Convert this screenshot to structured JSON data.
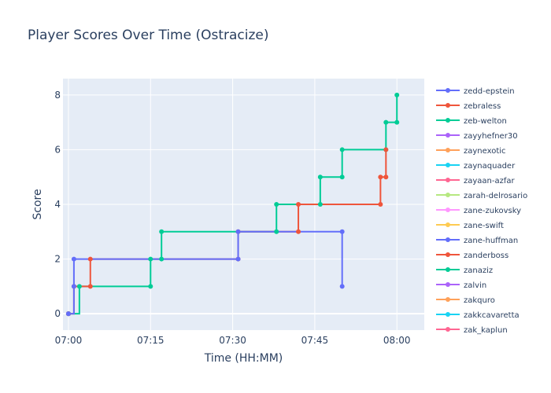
{
  "chart_data": {
    "type": "line",
    "line_shape": "step-after",
    "title": "Player Scores Over Time (Ostracize)",
    "xlabel": "Time (HH:MM)",
    "ylabel": "Score",
    "xlim": [
      "06:59",
      "08:05"
    ],
    "ylim": [
      -0.6,
      8.6
    ],
    "x_ticks": [
      "07:00",
      "07:15",
      "07:30",
      "07:45",
      "08:00"
    ],
    "y_ticks": [
      0,
      2,
      4,
      6,
      8
    ],
    "grid": true,
    "legend_position": "right",
    "series": [
      {
        "name": "zedd-epstein",
        "color": "#636efa",
        "points": [
          [
            "07:00",
            0
          ],
          [
            "07:01",
            1
          ],
          [
            "07:01",
            2
          ],
          [
            "07:31",
            2
          ],
          [
            "07:31",
            3
          ],
          [
            "07:50",
            3
          ],
          [
            "07:50",
            1
          ]
        ]
      },
      {
        "name": "zebraless",
        "color": "#ef553b",
        "points": [
          [
            "07:00",
            0
          ],
          [
            "07:01",
            1
          ],
          [
            "07:04",
            1
          ],
          [
            "07:04",
            2
          ],
          [
            "07:31",
            2
          ],
          [
            "07:31",
            3
          ],
          [
            "07:42",
            3
          ],
          [
            "07:42",
            4
          ],
          [
            "07:57",
            4
          ],
          [
            "07:57",
            5
          ],
          [
            "07:58",
            5
          ],
          [
            "07:58",
            6
          ]
        ]
      },
      {
        "name": "zeb-welton",
        "color": "#00cc96",
        "points": [
          [
            "07:00",
            0
          ],
          [
            "07:02",
            1
          ],
          [
            "07:15",
            1
          ],
          [
            "07:15",
            2
          ],
          [
            "07:17",
            2
          ],
          [
            "07:17",
            3
          ],
          [
            "07:38",
            3
          ],
          [
            "07:38",
            4
          ],
          [
            "07:46",
            4
          ],
          [
            "07:46",
            5
          ],
          [
            "07:50",
            5
          ],
          [
            "07:50",
            6
          ],
          [
            "07:58",
            6
          ],
          [
            "07:58",
            7
          ],
          [
            "08:00",
            7
          ],
          [
            "08:00",
            8
          ]
        ]
      },
      {
        "name": "zayyhefner30",
        "color": "#ab63fa",
        "points": [
          [
            "07:00",
            0
          ]
        ]
      },
      {
        "name": "zaynexotic",
        "color": "#ffa15a",
        "points": [
          [
            "07:00",
            0
          ]
        ]
      },
      {
        "name": "zaynaquader",
        "color": "#19d3f3",
        "points": [
          [
            "07:00",
            0
          ]
        ]
      },
      {
        "name": "zayaan-azfar",
        "color": "#ff6692",
        "points": [
          [
            "07:00",
            0
          ]
        ]
      },
      {
        "name": "zarah-delrosario",
        "color": "#b6e880",
        "points": [
          [
            "07:00",
            0
          ]
        ]
      },
      {
        "name": "zane-zukovsky",
        "color": "#ff97ff",
        "points": [
          [
            "07:00",
            0
          ]
        ]
      },
      {
        "name": "zane-swift",
        "color": "#fecb52",
        "points": [
          [
            "07:00",
            0
          ]
        ]
      },
      {
        "name": "zane-huffman",
        "color": "#636efa",
        "points": [
          [
            "07:00",
            0
          ]
        ]
      },
      {
        "name": "zanderboss",
        "color": "#ef553b",
        "points": [
          [
            "07:00",
            0
          ]
        ]
      },
      {
        "name": "zanaziz",
        "color": "#00cc96",
        "points": [
          [
            "07:00",
            0
          ]
        ]
      },
      {
        "name": "zalvin",
        "color": "#ab63fa",
        "points": [
          [
            "07:00",
            0
          ]
        ]
      },
      {
        "name": "zakquro",
        "color": "#ffa15a",
        "points": [
          [
            "07:00",
            0
          ]
        ]
      },
      {
        "name": "zakkcavaretta",
        "color": "#19d3f3",
        "points": [
          [
            "07:00",
            0
          ]
        ]
      },
      {
        "name": "zak_kaplun",
        "color": "#ff6692",
        "points": [
          [
            "07:00",
            0
          ]
        ]
      }
    ]
  }
}
